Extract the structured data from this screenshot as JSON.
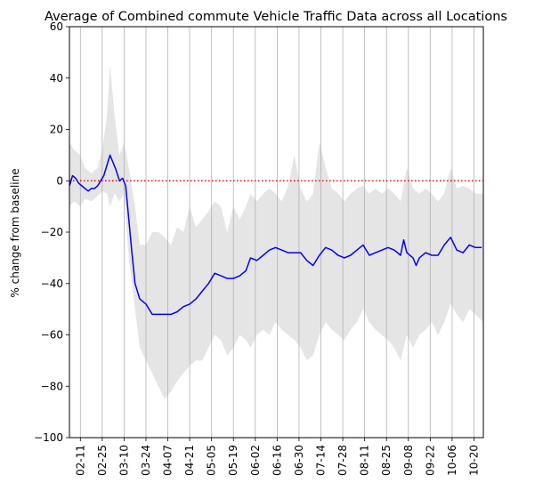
{
  "chart_data": {
    "type": "line",
    "title": "Average of Combined commute Vehicle Traffic Data across all Locations",
    "xlabel": "",
    "ylabel": "% change from baseline",
    "ylim": [
      -100,
      60
    ],
    "yticks": [
      -100,
      -80,
      -60,
      -40,
      -20,
      0,
      20,
      40,
      60
    ],
    "xrange": [
      "2020-02-04",
      "2020-10-26"
    ],
    "xticks": [
      "02-11",
      "02-25",
      "03-10",
      "03-24",
      "04-07",
      "04-21",
      "05-05",
      "05-19",
      "06-02",
      "06-16",
      "06-30",
      "07-14",
      "07-28",
      "08-11",
      "08-25",
      "09-08",
      "09-22",
      "10-06",
      "10-20"
    ],
    "xtick_dates": [
      "2020-02-11",
      "2020-02-25",
      "2020-03-10",
      "2020-03-24",
      "2020-04-07",
      "2020-04-21",
      "2020-05-05",
      "2020-05-19",
      "2020-06-02",
      "2020-06-16",
      "2020-06-30",
      "2020-07-14",
      "2020-07-28",
      "2020-08-11",
      "2020-08-25",
      "2020-09-08",
      "2020-09-22",
      "2020-10-06",
      "2020-10-20"
    ],
    "grid": "vertical",
    "baseline": {
      "y": 0,
      "color": "#ff0000",
      "style": "dotted"
    },
    "series": [
      {
        "color": "#0000ff",
        "points": [
          [
            "2020-02-04",
            -2
          ],
          [
            "2020-02-06",
            2
          ],
          [
            "2020-02-08",
            1
          ],
          [
            "2020-02-10",
            -1
          ],
          [
            "2020-02-12",
            -2
          ],
          [
            "2020-02-14",
            -3
          ],
          [
            "2020-02-16",
            -4
          ],
          [
            "2020-02-18",
            -3
          ],
          [
            "2020-02-20",
            -3
          ],
          [
            "2020-02-22",
            -2
          ],
          [
            "2020-02-24",
            0
          ],
          [
            "2020-02-26",
            2
          ],
          [
            "2020-02-28",
            6
          ],
          [
            "2020-03-01",
            10
          ],
          [
            "2020-03-03",
            7
          ],
          [
            "2020-03-05",
            4
          ],
          [
            "2020-03-07",
            0
          ],
          [
            "2020-03-09",
            1
          ],
          [
            "2020-03-11",
            -2
          ],
          [
            "2020-03-13",
            -15
          ],
          [
            "2020-03-15",
            -28
          ],
          [
            "2020-03-17",
            -40
          ],
          [
            "2020-03-20",
            -46
          ],
          [
            "2020-03-24",
            -48
          ],
          [
            "2020-03-28",
            -52
          ],
          [
            "2020-04-01",
            -52
          ],
          [
            "2020-04-05",
            -52
          ],
          [
            "2020-04-09",
            -52
          ],
          [
            "2020-04-13",
            -51
          ],
          [
            "2020-04-17",
            -49
          ],
          [
            "2020-04-21",
            -48
          ],
          [
            "2020-04-25",
            -46
          ],
          [
            "2020-04-29",
            -43
          ],
          [
            "2020-05-03",
            -40
          ],
          [
            "2020-05-07",
            -36
          ],
          [
            "2020-05-11",
            -37
          ],
          [
            "2020-05-15",
            -38
          ],
          [
            "2020-05-19",
            -38
          ],
          [
            "2020-05-23",
            -37
          ],
          [
            "2020-05-27",
            -35
          ],
          [
            "2020-05-30",
            -30
          ],
          [
            "2020-06-03",
            -31
          ],
          [
            "2020-06-07",
            -29
          ],
          [
            "2020-06-11",
            -27
          ],
          [
            "2020-06-15",
            -26
          ],
          [
            "2020-06-19",
            -27
          ],
          [
            "2020-06-23",
            -28
          ],
          [
            "2020-06-27",
            -28
          ],
          [
            "2020-07-01",
            -28
          ],
          [
            "2020-07-05",
            -31
          ],
          [
            "2020-07-09",
            -33
          ],
          [
            "2020-07-13",
            -29
          ],
          [
            "2020-07-17",
            -26
          ],
          [
            "2020-07-21",
            -27
          ],
          [
            "2020-07-25",
            -29
          ],
          [
            "2020-07-29",
            -30
          ],
          [
            "2020-08-02",
            -29
          ],
          [
            "2020-08-06",
            -27
          ],
          [
            "2020-08-10",
            -25
          ],
          [
            "2020-08-14",
            -29
          ],
          [
            "2020-08-18",
            -28
          ],
          [
            "2020-08-22",
            -27
          ],
          [
            "2020-08-26",
            -26
          ],
          [
            "2020-08-30",
            -27
          ],
          [
            "2020-09-03",
            -29
          ],
          [
            "2020-09-05",
            -23
          ],
          [
            "2020-09-07",
            -28
          ],
          [
            "2020-09-11",
            -30
          ],
          [
            "2020-09-13",
            -33
          ],
          [
            "2020-09-15",
            -30
          ],
          [
            "2020-09-19",
            -28
          ],
          [
            "2020-09-23",
            -29
          ],
          [
            "2020-09-27",
            -29
          ],
          [
            "2020-10-01",
            -25
          ],
          [
            "2020-10-05",
            -22
          ],
          [
            "2020-10-09",
            -27
          ],
          [
            "2020-10-13",
            -28
          ],
          [
            "2020-10-17",
            -25
          ],
          [
            "2020-10-21",
            -26
          ],
          [
            "2020-10-25",
            -26
          ]
        ],
        "band": [
          [
            "2020-02-04",
            15,
            -10
          ],
          [
            "2020-02-07",
            12,
            -8
          ],
          [
            "2020-02-11",
            10,
            -10
          ],
          [
            "2020-02-14",
            5,
            -7
          ],
          [
            "2020-02-18",
            3,
            -8
          ],
          [
            "2020-02-22",
            5,
            -6
          ],
          [
            "2020-02-25",
            12,
            -4
          ],
          [
            "2020-02-28",
            25,
            -5
          ],
          [
            "2020-03-01",
            45,
            -10
          ],
          [
            "2020-03-04",
            25,
            -5
          ],
          [
            "2020-03-07",
            10,
            -8
          ],
          [
            "2020-03-10",
            15,
            -5
          ],
          [
            "2020-03-13",
            5,
            -30
          ],
          [
            "2020-03-17",
            -10,
            -50
          ],
          [
            "2020-03-20",
            -25,
            -65
          ],
          [
            "2020-03-24",
            -25,
            -70
          ],
          [
            "2020-03-28",
            -20,
            -75
          ],
          [
            "2020-04-01",
            -20,
            -80
          ],
          [
            "2020-04-05",
            -22,
            -85
          ],
          [
            "2020-04-09",
            -25,
            -82
          ],
          [
            "2020-04-13",
            -18,
            -78
          ],
          [
            "2020-04-17",
            -20,
            -75
          ],
          [
            "2020-04-21",
            -10,
            -72
          ],
          [
            "2020-04-25",
            -18,
            -70
          ],
          [
            "2020-04-29",
            -15,
            -70
          ],
          [
            "2020-05-03",
            -12,
            -65
          ],
          [
            "2020-05-07",
            -8,
            -60
          ],
          [
            "2020-05-11",
            -10,
            -62
          ],
          [
            "2020-05-15",
            -20,
            -68
          ],
          [
            "2020-05-19",
            -10,
            -65
          ],
          [
            "2020-05-23",
            -15,
            -60
          ],
          [
            "2020-05-27",
            -10,
            -62
          ],
          [
            "2020-05-30",
            -5,
            -65
          ],
          [
            "2020-06-03",
            -8,
            -60
          ],
          [
            "2020-06-07",
            -5,
            -58
          ],
          [
            "2020-06-11",
            -3,
            -60
          ],
          [
            "2020-06-15",
            -5,
            -55
          ],
          [
            "2020-06-19",
            -8,
            -58
          ],
          [
            "2020-06-23",
            -2,
            -60
          ],
          [
            "2020-06-27",
            10,
            -62
          ],
          [
            "2020-07-01",
            -3,
            -65
          ],
          [
            "2020-07-05",
            -8,
            -70
          ],
          [
            "2020-07-09",
            -5,
            -68
          ],
          [
            "2020-07-13",
            15,
            -60
          ],
          [
            "2020-07-17",
            5,
            -55
          ],
          [
            "2020-07-21",
            -3,
            -58
          ],
          [
            "2020-07-25",
            -5,
            -60
          ],
          [
            "2020-07-29",
            -8,
            -62
          ],
          [
            "2020-08-02",
            -5,
            -58
          ],
          [
            "2020-08-06",
            -3,
            -55
          ],
          [
            "2020-08-10",
            -2,
            -50
          ],
          [
            "2020-08-14",
            -5,
            -55
          ],
          [
            "2020-08-18",
            -3,
            -58
          ],
          [
            "2020-08-22",
            -5,
            -60
          ],
          [
            "2020-08-26",
            -3,
            -62
          ],
          [
            "2020-08-30",
            -5,
            -65
          ],
          [
            "2020-09-03",
            -8,
            -70
          ],
          [
            "2020-09-07",
            5,
            -60
          ],
          [
            "2020-09-11",
            -3,
            -65
          ],
          [
            "2020-09-15",
            -5,
            -60
          ],
          [
            "2020-09-19",
            -3,
            -58
          ],
          [
            "2020-09-23",
            -5,
            -55
          ],
          [
            "2020-09-27",
            -8,
            -60
          ],
          [
            "2020-10-01",
            -5,
            -55
          ],
          [
            "2020-10-05",
            5,
            -48
          ],
          [
            "2020-10-09",
            -3,
            -52
          ],
          [
            "2020-10-13",
            -2,
            -55
          ],
          [
            "2020-10-17",
            -3,
            -50
          ],
          [
            "2020-10-21",
            -5,
            -52
          ],
          [
            "2020-10-26",
            -5,
            -55
          ]
        ]
      }
    ]
  }
}
